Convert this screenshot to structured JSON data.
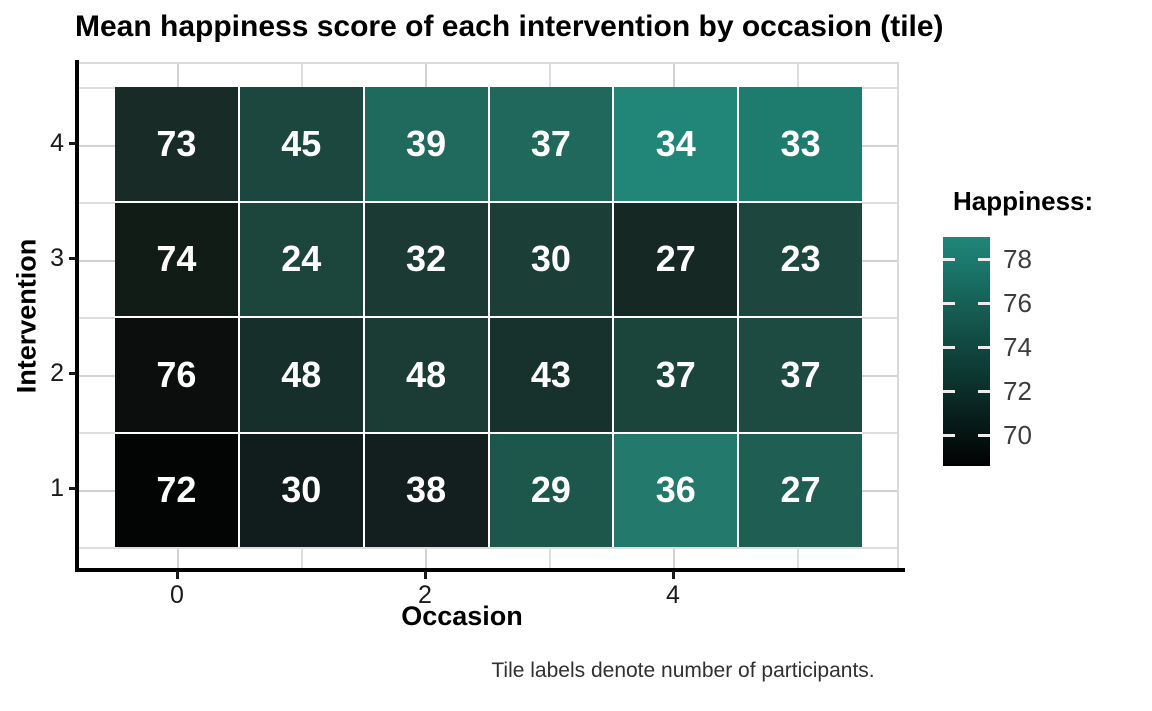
{
  "title": "Mean happiness score of each intervention by occasion (tile)",
  "caption": "Tile labels denote number of participants.",
  "x_axis": {
    "label": "Occasion",
    "ticks": [
      "0",
      "2",
      "4"
    ]
  },
  "y_axis": {
    "label": "Intervention",
    "ticks": [
      "4",
      "3",
      "2",
      "1"
    ]
  },
  "legend": {
    "title": "Happiness:",
    "ticks": [
      "78",
      "76",
      "74",
      "72",
      "70"
    ],
    "gradient_top": "#1f8779",
    "gradient_bottom": "#010202"
  },
  "colors": {
    "tile_text": "#ffffff",
    "axis_line": "#000000",
    "grid_major": "#d2d2d2",
    "grid_minor": "#dedede"
  },
  "chart_data": {
    "type": "heatmap",
    "title": "Mean happiness score of each intervention by occasion (tile)",
    "xlabel": "Occasion",
    "ylabel": "Intervention",
    "x_values": [
      0,
      1,
      2,
      3,
      4,
      5
    ],
    "y_values_top_to_bottom": [
      4,
      3,
      2,
      1
    ],
    "x_tick_breaks": [
      0,
      2,
      4
    ],
    "y_tick_breaks": [
      4,
      3,
      2,
      1
    ],
    "color_scale": {
      "name": "Happiness:",
      "min": 68.6,
      "max": 79.1,
      "tick_values": [
        78,
        76,
        74,
        72,
        70
      ]
    },
    "tile_label_meaning": "number of participants",
    "color_meaning": "mean happiness score (estimated from tile color)",
    "rows": [
      {
        "intervention": 4,
        "cells": [
          {
            "occasion": 0,
            "participants": "73",
            "happiness_est": 72.1,
            "fill": "#182b26"
          },
          {
            "occasion": 1,
            "participants": "45",
            "happiness_est": 73.9,
            "fill": "#1c473e"
          },
          {
            "occasion": 2,
            "participants": "39",
            "happiness_est": 76.5,
            "fill": "#20695d"
          },
          {
            "occasion": 3,
            "participants": "37",
            "happiness_est": 76.4,
            "fill": "#20685c"
          },
          {
            "occasion": 4,
            "participants": "34",
            "happiness_est": 79.0,
            "fill": "#218578"
          },
          {
            "occasion": 5,
            "participants": "33",
            "happiness_est": 78.3,
            "fill": "#1e7c6f"
          }
        ]
      },
      {
        "intervention": 3,
        "cells": [
          {
            "occasion": 0,
            "participants": "74",
            "happiness_est": 70.8,
            "fill": "#121c17"
          },
          {
            "occasion": 1,
            "participants": "24",
            "happiness_est": 74.0,
            "fill": "#1c453c"
          },
          {
            "occasion": 2,
            "participants": "32",
            "happiness_est": 73.1,
            "fill": "#1a3a33"
          },
          {
            "occasion": 3,
            "participants": "30",
            "happiness_est": 73.5,
            "fill": "#1b3f37"
          },
          {
            "occasion": 4,
            "participants": "27",
            "happiness_est": 71.7,
            "fill": "#152823"
          },
          {
            "occasion": 5,
            "participants": "23",
            "happiness_est": 74.0,
            "fill": "#1c463e"
          }
        ]
      },
      {
        "intervention": 2,
        "cells": [
          {
            "occasion": 0,
            "participants": "76",
            "happiness_est": 69.7,
            "fill": "#0b0e0d"
          },
          {
            "occasion": 1,
            "participants": "48",
            "happiness_est": 72.2,
            "fill": "#162f2a"
          },
          {
            "occasion": 2,
            "participants": "48",
            "happiness_est": 73.2,
            "fill": "#1a3c35"
          },
          {
            "occasion": 3,
            "participants": "43",
            "happiness_est": 72.5,
            "fill": "#17322c"
          },
          {
            "occasion": 4,
            "participants": "37",
            "happiness_est": 73.9,
            "fill": "#1b443b"
          },
          {
            "occasion": 5,
            "participants": "37",
            "happiness_est": 74.4,
            "fill": "#1d4b42"
          }
        ]
      },
      {
        "intervention": 1,
        "cells": [
          {
            "occasion": 0,
            "participants": "72",
            "happiness_est": 69.0,
            "fill": "#030404"
          },
          {
            "occasion": 1,
            "participants": "30",
            "happiness_est": 70.8,
            "fill": "#101d1c"
          },
          {
            "occasion": 2,
            "participants": "38",
            "happiness_est": 71.0,
            "fill": "#121f1e"
          },
          {
            "occasion": 3,
            "participants": "29",
            "happiness_est": 75.3,
            "fill": "#1d574b"
          },
          {
            "occasion": 4,
            "participants": "36",
            "happiness_est": 77.9,
            "fill": "#23796b"
          },
          {
            "occasion": 5,
            "participants": "27",
            "happiness_est": 75.8,
            "fill": "#1e5e53"
          }
        ]
      }
    ]
  }
}
